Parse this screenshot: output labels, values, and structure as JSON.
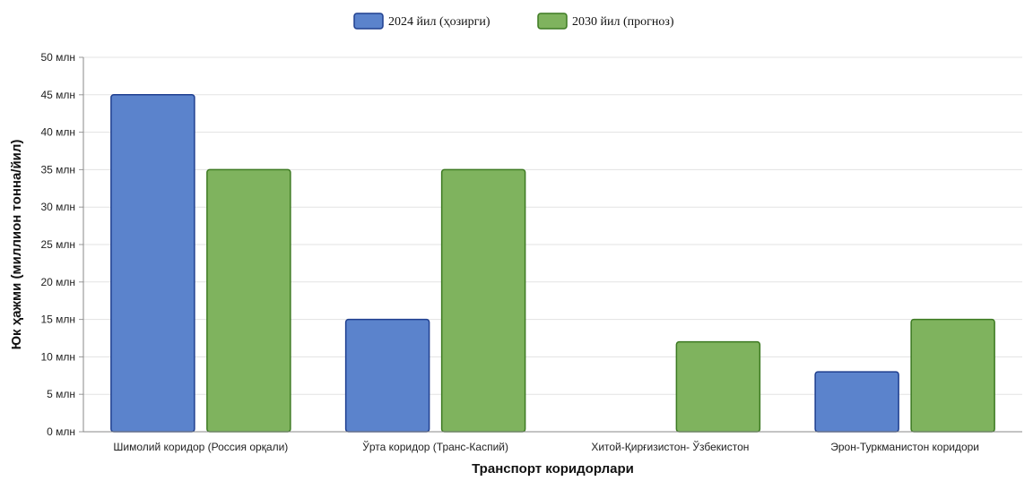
{
  "chart_data": {
    "type": "bar",
    "categories": [
      "Шимолий коридор (Россия орқали)",
      "Ўрта коридор (Транс-Каспий)",
      "Хитой-Қирғизистон- Ўзбекистон",
      "Эрон-Туркманистон коридори"
    ],
    "series": [
      {
        "name": "2024 йил (ҳозирги)",
        "values": [
          45,
          15,
          0,
          8
        ],
        "color": "#5b83cc",
        "stroke": "#1f3f8f"
      },
      {
        "name": "2030 йил (прогноз)",
        "values": [
          35,
          35,
          12,
          15
        ],
        "color": "#7fb35e",
        "stroke": "#3d7a22"
      }
    ],
    "title": "",
    "xlabel": "Транспорт коридорлари",
    "ylabel": "Юк ҳажми (миллион тонна/йил)",
    "ylim": [
      0,
      50
    ],
    "yticks": [
      0,
      5,
      10,
      15,
      20,
      25,
      30,
      35,
      40,
      45,
      50
    ],
    "ytick_labels": [
      "0 млн",
      "5 млн",
      "10 млн",
      "15 млн",
      "20 млн",
      "25 млн",
      "30 млн",
      "35 млн",
      "40 млн",
      "45 млн",
      "50 млн"
    ],
    "grid": true,
    "legend": "top-center",
    "gridline_color": "#e3e3e3"
  }
}
